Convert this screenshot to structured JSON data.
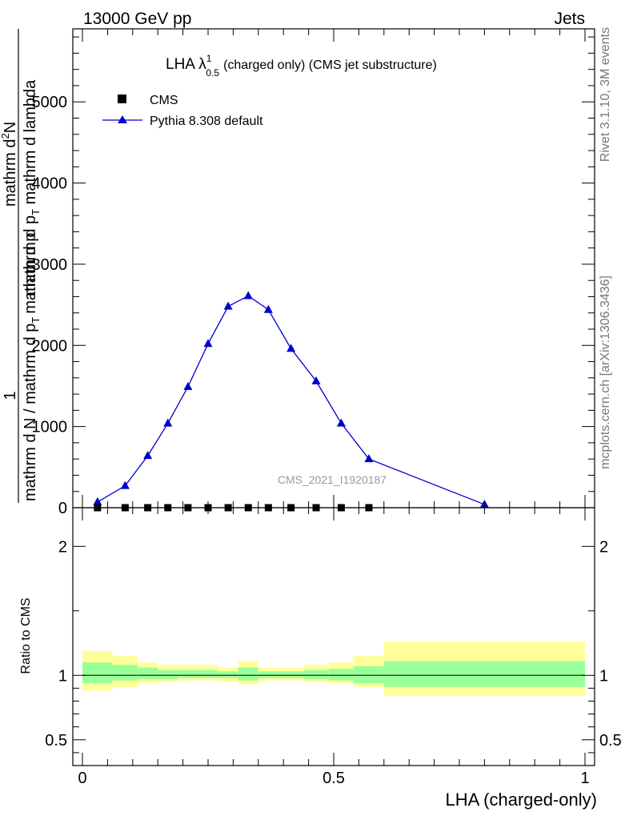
{
  "header": {
    "left": "13000 GeV pp",
    "right": "Jets"
  },
  "plot": {
    "title_main": "LHA λ",
    "title_sup": "1",
    "title_sub": "0.5",
    "title_rest": "(charged only) (CMS jet substructure)",
    "watermark": "CMS_2021_I1920187",
    "ylabel_top_1": "1",
    "ylabel_bottom_1": "mathrm d N / mathrm d p",
    "ylabel_bottom_sub": "T",
    "ylabel_bottom_2": "mathrm d p",
    "ylabel_top_2": "mathrm d",
    "ylabel_top_2_sup": "2",
    "ylabel_top_2_rest": "N",
    "ylabel_bottom_3": "mathrm d p",
    "ylabel_bottom_3_sub": "T",
    "ylabel_bottom_3_rest": " mathrm d lambda",
    "ratio_ylabel": "Ratio to CMS",
    "xlabel": "LHA (charged-only)"
  },
  "side_text": {
    "rivet": "Rivet 3.1.10,  3M events",
    "mcplots": "mcplots.cern.ch [arXiv:1306.3436]"
  },
  "legend": [
    {
      "label": "CMS",
      "marker": "square",
      "color": "#000000"
    },
    {
      "label": "Pythia 8.308 default",
      "marker": "triangle",
      "color": "#0000cc"
    }
  ],
  "chart_data": {
    "type": "line",
    "title": "LHA λ^1_0.5 (charged only) (CMS jet substructure)",
    "xlabel": "LHA (charged-only)",
    "xlim": [
      0,
      1
    ],
    "ylim_main": [
      0,
      5900
    ],
    "ylim_ratio": [
      0.3,
      2.3
    ],
    "main_yticks": [
      0,
      1000,
      2000,
      3000,
      4000,
      5000
    ],
    "main_ytick_labels": [
      "0",
      "1000",
      "2000",
      "3000",
      "4000",
      "5000"
    ],
    "ratio_yticks": [
      0.5,
      1,
      2
    ],
    "ratio_ytick_labels": [
      "0.5",
      "1",
      "2"
    ],
    "xticks": [
      0,
      0.5,
      1
    ],
    "xtick_labels": [
      "0",
      "0.5",
      "1"
    ],
    "series": [
      {
        "name": "CMS",
        "x": [
          0.03,
          0.085,
          0.13,
          0.17,
          0.21,
          0.25,
          0.29,
          0.33,
          0.37,
          0.415,
          0.465,
          0.515,
          0.57
        ],
        "y": [
          0,
          0,
          0,
          0,
          0,
          0,
          0,
          0,
          0,
          0,
          0,
          0,
          0
        ]
      },
      {
        "name": "Pythia 8.308 default",
        "x": [
          0.03,
          0.085,
          0.13,
          0.17,
          0.21,
          0.25,
          0.29,
          0.33,
          0.37,
          0.415,
          0.465,
          0.515,
          0.57,
          0.8
        ],
        "y": [
          70,
          270,
          640,
          1040,
          1490,
          2020,
          2480,
          2610,
          2440,
          1960,
          1560,
          1040,
          600,
          40
        ]
      }
    ],
    "ratio_bands": [
      {
        "x0": 0.0,
        "x1": 0.06,
        "inner": [
          0.94,
          1.1
        ],
        "outer": [
          0.88,
          1.19
        ]
      },
      {
        "x0": 0.06,
        "x1": 0.11,
        "inner": [
          0.96,
          1.08
        ],
        "outer": [
          0.91,
          1.15
        ]
      },
      {
        "x0": 0.11,
        "x1": 0.15,
        "inner": [
          0.97,
          1.06
        ],
        "outer": [
          0.94,
          1.1
        ]
      },
      {
        "x0": 0.15,
        "x1": 0.19,
        "inner": [
          0.97,
          1.04
        ],
        "outer": [
          0.95,
          1.08
        ]
      },
      {
        "x0": 0.19,
        "x1": 0.23,
        "inner": [
          0.98,
          1.04
        ],
        "outer": [
          0.96,
          1.08
        ]
      },
      {
        "x0": 0.23,
        "x1": 0.27,
        "inner": [
          0.98,
          1.04
        ],
        "outer": [
          0.96,
          1.08
        ]
      },
      {
        "x0": 0.27,
        "x1": 0.31,
        "inner": [
          0.98,
          1.03
        ],
        "outer": [
          0.95,
          1.06
        ]
      },
      {
        "x0": 0.31,
        "x1": 0.35,
        "inner": [
          0.96,
          1.06
        ],
        "outer": [
          0.93,
          1.11
        ]
      },
      {
        "x0": 0.35,
        "x1": 0.39,
        "inner": [
          0.98,
          1.03
        ],
        "outer": [
          0.96,
          1.06
        ]
      },
      {
        "x0": 0.39,
        "x1": 0.44,
        "inner": [
          0.98,
          1.03
        ],
        "outer": [
          0.96,
          1.06
        ]
      },
      {
        "x0": 0.44,
        "x1": 0.49,
        "inner": [
          0.97,
          1.04
        ],
        "outer": [
          0.95,
          1.08
        ]
      },
      {
        "x0": 0.49,
        "x1": 0.54,
        "inner": [
          0.96,
          1.05
        ],
        "outer": [
          0.94,
          1.1
        ]
      },
      {
        "x0": 0.54,
        "x1": 0.6,
        "inner": [
          0.94,
          1.07
        ],
        "outer": [
          0.91,
          1.15
        ]
      },
      {
        "x0": 0.6,
        "x1": 1.0,
        "inner": [
          0.91,
          1.11
        ],
        "outer": [
          0.84,
          1.26
        ]
      }
    ],
    "ratio_band_colors": {
      "inner": "#99ff99",
      "outer": "#ffff99"
    },
    "series_colors": {
      "CMS": "#000000",
      "Pythia 8.308 default": "#0000cc"
    }
  }
}
